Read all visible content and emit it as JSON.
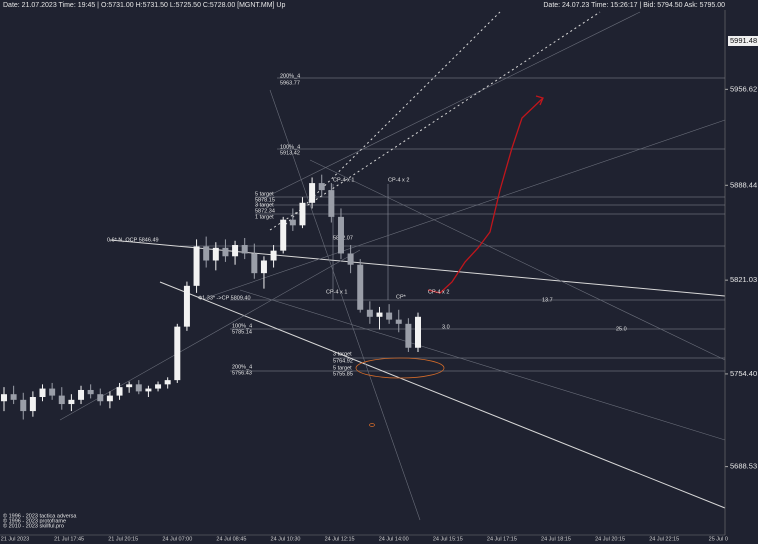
{
  "chart_data": {
    "type": "candlestick",
    "header_left": "Date: 21.07.2023 Time: 19:45 | O:5731.00 H:5731.50 L:5725.50 C:5728.00 [MGNT.MM] Up",
    "header_right": "Date: 24.07.23 Time: 15:26:17 | Bid: 5794.50 Ask: 5795.00",
    "price_marker": "5991.48",
    "candle_color_up": "#f2f2f2",
    "candle_color_down": "#9a9ea8",
    "grid": false,
    "ylim": [
      5643.5,
      6013
    ],
    "yticks": [
      5956.62,
      5888.44,
      5821.03,
      {
        "value": 5754.4,
        "label": "5754.40"
      },
      5688.53
    ],
    "x_labels": [
      "21 Jul 2023",
      "21 Jul 17:45",
      "21 Jul 20:15",
      "24 Jul 07:00",
      "24 Jul 08:45",
      "24 Jul 10:30",
      "24 Jul 12:15",
      "24 Jul 14:00",
      "24 Jul 15:15",
      "24 Jul 17:15",
      "24 Jul 18:15",
      "24 Jul 20:15",
      "24 Jul 22:15",
      "25 Jul 0"
    ],
    "open": [
      5735,
      5740,
      5736,
      5728,
      5738,
      5744,
      5739,
      5733,
      5736,
      5743,
      5740,
      5735,
      5739,
      5745,
      5747,
      5742,
      5744,
      5747,
      5750,
      5788,
      5817,
      5845,
      5835,
      5844,
      5838,
      5846,
      5840,
      5826,
      5835,
      5842,
      5864,
      5860,
      5876,
      5890,
      5885,
      5866,
      5840,
      5832,
      5800,
      5795,
      5798,
      5793,
      5790,
      5773
    ],
    "high": [
      5745,
      5746,
      5741,
      5742,
      5747,
      5748,
      5745,
      5740,
      5746,
      5747,
      5744,
      5742,
      5748,
      5749,
      5750,
      5746,
      5749,
      5752,
      5790,
      5820,
      5850,
      5852,
      5848,
      5850,
      5849,
      5851,
      5847,
      5838,
      5846,
      5866,
      5872,
      5880,
      5894,
      5896,
      5890,
      5872,
      5846,
      5836,
      5806,
      5802,
      5804,
      5800,
      5794,
      5798
    ],
    "low": [
      5728,
      5733,
      5722,
      5724,
      5735,
      5736,
      5729,
      5728,
      5733,
      5737,
      5732,
      5730,
      5736,
      5741,
      5740,
      5738,
      5742,
      5744,
      5748,
      5785,
      5812,
      5830,
      5828,
      5834,
      5832,
      5836,
      5822,
      5815,
      5830,
      5840,
      5856,
      5858,
      5872,
      5880,
      5862,
      5836,
      5826,
      5798,
      5790,
      5786,
      5790,
      5784,
      5770,
      5770
    ],
    "close": [
      5740,
      5736,
      5728,
      5738,
      5744,
      5739,
      5733,
      5736,
      5743,
      5740,
      5735,
      5739,
      5745,
      5747,
      5742,
      5744,
      5747,
      5750,
      5788,
      5817,
      5845,
      5835,
      5844,
      5838,
      5846,
      5840,
      5826,
      5835,
      5842,
      5864,
      5860,
      5876,
      5890,
      5885,
      5866,
      5840,
      5832,
      5800,
      5795,
      5798,
      5793,
      5790,
      5773,
      5795
    ],
    "annotations": [
      "200%_4",
      "5963.77",
      "100%_4",
      "5913.42",
      "CP-4 x 1",
      "CP-4 x 2",
      "5 target",
      "5878.15",
      "3 target",
      "5872.34",
      "1 target",
      "0.6* N, OCP 5846.49",
      "5852.07",
      "Ф1.33* ->CP 5809.40",
      "CP-4 x 1",
      "CP*",
      "CP-4 x 2",
      "100%_4",
      "5785.14",
      "3 target",
      "5764.92",
      "5 target",
      "5755.85",
      "200%_4",
      "5756.43",
      "13.7",
      "3.0",
      "25.0"
    ],
    "copyright": [
      "© 1996 - 2023 tactica adversa",
      "© 1996 - 2023 protoframe",
      "© 2010 - 2023 skillful.pro"
    ]
  }
}
